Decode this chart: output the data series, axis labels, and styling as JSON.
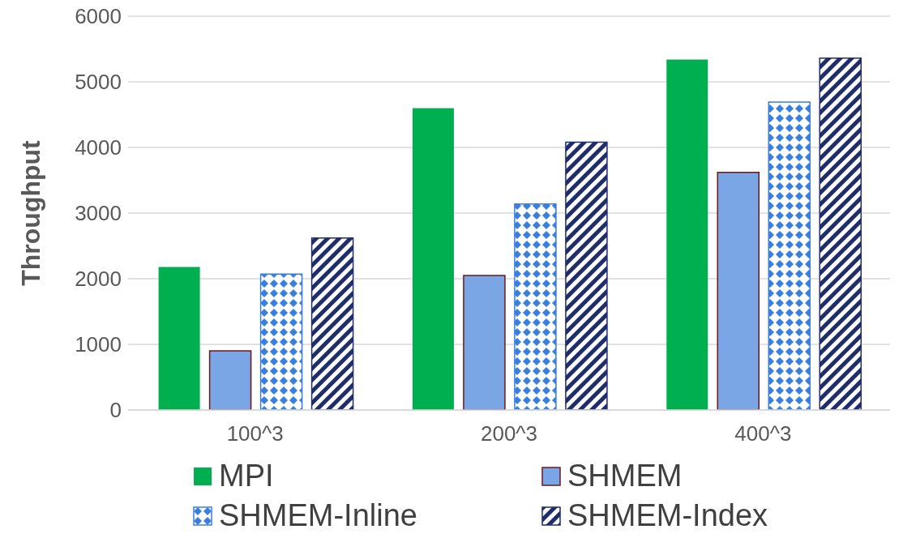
{
  "chart_data": {
    "type": "bar",
    "ylabel": "Throughput",
    "categories": [
      "100^3",
      "200^3",
      "400^3"
    ],
    "series": [
      {
        "name": "MPI",
        "color": "#00b050",
        "values": [
          2180,
          4600,
          5340
        ]
      },
      {
        "name": "SHMEM",
        "color": "#7aa6e6",
        "values": [
          900,
          2050,
          3620
        ]
      },
      {
        "name": "SHMEM-Inline",
        "color": "#3a7fe0",
        "values": [
          2070,
          3140,
          4690
        ]
      },
      {
        "name": "SHMEM-Index",
        "color": "#1f2d6b",
        "values": [
          2620,
          4080,
          5360
        ]
      }
    ],
    "ylim": [
      0,
      6000
    ],
    "yticks": [
      0,
      1000,
      2000,
      3000,
      4000,
      5000,
      6000
    ],
    "grid": "y",
    "legend": "bottom"
  }
}
